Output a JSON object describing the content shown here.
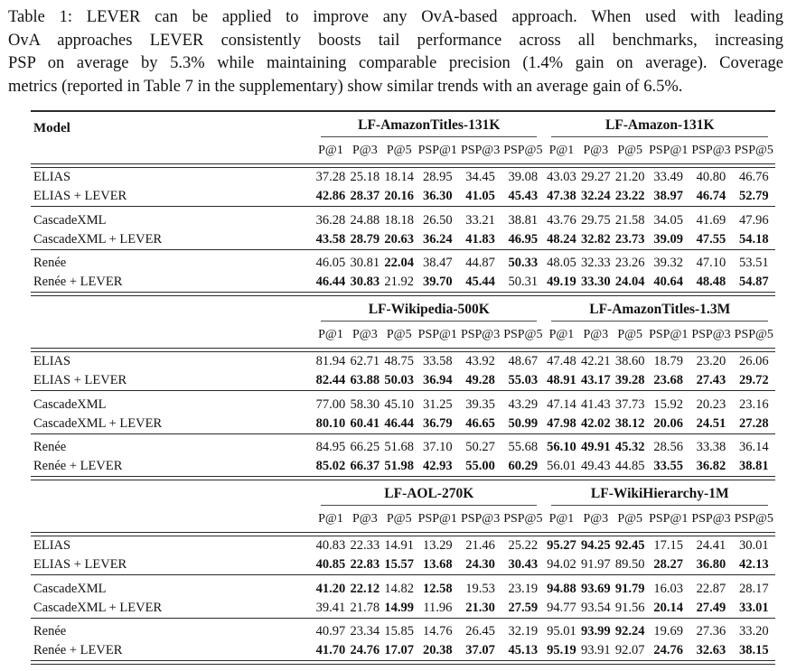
{
  "caption": {
    "lines": [
      "Table 1: LEVER can be applied to improve any OvA-based approach.  When used with leading",
      "OvA approaches LEVER consistently boosts tail performance across all benchmarks, increasing",
      "PSP on average by 5.3% while maintaining comparable precision (1.4% gain on average). Coverage",
      "metrics (reported in Table 7 in the supplementary) show similar trends with an average gain of 6.5%."
    ]
  },
  "table": {
    "model_header": "Model",
    "metrics": [
      "P@1",
      "P@3",
      "P@5",
      "PSP@1",
      "PSP@3",
      "PSP@5"
    ],
    "text_color": "#121212",
    "rule_color": "#2a2a2a",
    "sections": [
      {
        "datasets": [
          "LF-AmazonTitles-131K",
          "LF-Amazon-131K"
        ],
        "groups": [
          {
            "rows": [
              {
                "model": "ELIAS",
                "values": [
                  "37.28",
                  "25.18",
                  "18.14",
                  "28.95",
                  "34.45",
                  "39.08",
                  "43.03",
                  "29.27",
                  "21.20",
                  "33.49",
                  "40.80",
                  "46.76"
                ],
                "bold": [
                  0,
                  0,
                  0,
                  0,
                  0,
                  0,
                  0,
                  0,
                  0,
                  0,
                  0,
                  0
                ]
              },
              {
                "model": "ELIAS + LEVER",
                "values": [
                  "42.86",
                  "28.37",
                  "20.16",
                  "36.30",
                  "41.05",
                  "45.43",
                  "47.38",
                  "32.24",
                  "23.22",
                  "38.97",
                  "46.74",
                  "52.79"
                ],
                "bold": [
                  1,
                  1,
                  1,
                  1,
                  1,
                  1,
                  1,
                  1,
                  1,
                  1,
                  1,
                  1
                ]
              }
            ]
          },
          {
            "rows": [
              {
                "model": "CascadeXML",
                "values": [
                  "36.28",
                  "24.88",
                  "18.18",
                  "26.50",
                  "33.21",
                  "38.81",
                  "43.76",
                  "29.75",
                  "21.58",
                  "34.05",
                  "41.69",
                  "47.96"
                ],
                "bold": [
                  0,
                  0,
                  0,
                  0,
                  0,
                  0,
                  0,
                  0,
                  0,
                  0,
                  0,
                  0
                ]
              },
              {
                "model": "CascadeXML + LEVER",
                "values": [
                  "43.58",
                  "28.79",
                  "20.63",
                  "36.24",
                  "41.83",
                  "46.95",
                  "48.24",
                  "32.82",
                  "23.73",
                  "39.09",
                  "47.55",
                  "54.18"
                ],
                "bold": [
                  1,
                  1,
                  1,
                  1,
                  1,
                  1,
                  1,
                  1,
                  1,
                  1,
                  1,
                  1
                ]
              }
            ]
          },
          {
            "rows": [
              {
                "model": "Renée",
                "values": [
                  "46.05",
                  "30.81",
                  "22.04",
                  "38.47",
                  "44.87",
                  "50.33",
                  "48.05",
                  "32.33",
                  "23.26",
                  "39.32",
                  "47.10",
                  "53.51"
                ],
                "bold": [
                  0,
                  0,
                  1,
                  0,
                  0,
                  1,
                  0,
                  0,
                  0,
                  0,
                  0,
                  0
                ]
              },
              {
                "model": "Renée + LEVER",
                "values": [
                  "46.44",
                  "30.83",
                  "21.92",
                  "39.70",
                  "45.44",
                  "50.31",
                  "49.19",
                  "33.30",
                  "24.04",
                  "40.64",
                  "48.48",
                  "54.87"
                ],
                "bold": [
                  1,
                  1,
                  0,
                  1,
                  1,
                  0,
                  1,
                  1,
                  1,
                  1,
                  1,
                  1
                ]
              }
            ]
          }
        ]
      },
      {
        "datasets": [
          "LF-Wikipedia-500K",
          "LF-AmazonTitles-1.3M"
        ],
        "groups": [
          {
            "rows": [
              {
                "model": "ELIAS",
                "values": [
                  "81.94",
                  "62.71",
                  "48.75",
                  "33.58",
                  "43.92",
                  "48.67",
                  "47.48",
                  "42.21",
                  "38.60",
                  "18.79",
                  "23.20",
                  "26.06"
                ],
                "bold": [
                  0,
                  0,
                  0,
                  0,
                  0,
                  0,
                  0,
                  0,
                  0,
                  0,
                  0,
                  0
                ]
              },
              {
                "model": "ELIAS + LEVER",
                "values": [
                  "82.44",
                  "63.88",
                  "50.03",
                  "36.94",
                  "49.28",
                  "55.03",
                  "48.91",
                  "43.17",
                  "39.28",
                  "23.68",
                  "27.43",
                  "29.72"
                ],
                "bold": [
                  1,
                  1,
                  1,
                  1,
                  1,
                  1,
                  1,
                  1,
                  1,
                  1,
                  1,
                  1
                ]
              }
            ]
          },
          {
            "rows": [
              {
                "model": "CascadeXML",
                "values": [
                  "77.00",
                  "58.30",
                  "45.10",
                  "31.25",
                  "39.35",
                  "43.29",
                  "47.14",
                  "41.43",
                  "37.73",
                  "15.92",
                  "20.23",
                  "23.16"
                ],
                "bold": [
                  0,
                  0,
                  0,
                  0,
                  0,
                  0,
                  0,
                  0,
                  0,
                  0,
                  0,
                  0
                ]
              },
              {
                "model": "CascadeXML + LEVER",
                "values": [
                  "80.10",
                  "60.41",
                  "46.44",
                  "36.79",
                  "46.65",
                  "50.99",
                  "47.98",
                  "42.02",
                  "38.12",
                  "20.06",
                  "24.51",
                  "27.28"
                ],
                "bold": [
                  1,
                  1,
                  1,
                  1,
                  1,
                  1,
                  1,
                  1,
                  1,
                  1,
                  1,
                  1
                ]
              }
            ]
          },
          {
            "rows": [
              {
                "model": "Renée",
                "values": [
                  "84.95",
                  "66.25",
                  "51.68",
                  "37.10",
                  "50.27",
                  "55.68",
                  "56.10",
                  "49.91",
                  "45.32",
                  "28.56",
                  "33.38",
                  "36.14"
                ],
                "bold": [
                  0,
                  0,
                  0,
                  0,
                  0,
                  0,
                  1,
                  1,
                  1,
                  0,
                  0,
                  0
                ]
              },
              {
                "model": "Renée + LEVER",
                "values": [
                  "85.02",
                  "66.37",
                  "51.98",
                  "42.93",
                  "55.00",
                  "60.29",
                  "56.01",
                  "49.43",
                  "44.85",
                  "33.55",
                  "36.82",
                  "38.81"
                ],
                "bold": [
                  1,
                  1,
                  1,
                  1,
                  1,
                  1,
                  0,
                  0,
                  0,
                  1,
                  1,
                  1
                ]
              }
            ]
          }
        ]
      },
      {
        "datasets": [
          "LF-AOL-270K",
          "LF-WikiHierarchy-1M"
        ],
        "groups": [
          {
            "rows": [
              {
                "model": "ELIAS",
                "values": [
                  "40.83",
                  "22.33",
                  "14.91",
                  "13.29",
                  "21.46",
                  "25.22",
                  "95.27",
                  "94.25",
                  "92.45",
                  "17.15",
                  "24.41",
                  "30.01"
                ],
                "bold": [
                  0,
                  0,
                  0,
                  0,
                  0,
                  0,
                  1,
                  1,
                  1,
                  0,
                  0,
                  0
                ]
              },
              {
                "model": "ELIAS + LEVER",
                "values": [
                  "40.85",
                  "22.83",
                  "15.57",
                  "13.68",
                  "24.30",
                  "30.43",
                  "94.02",
                  "91.97",
                  "89.50",
                  "28.27",
                  "36.80",
                  "42.13"
                ],
                "bold": [
                  1,
                  1,
                  1,
                  1,
                  1,
                  1,
                  0,
                  0,
                  0,
                  1,
                  1,
                  1
                ]
              }
            ]
          },
          {
            "rows": [
              {
                "model": "CascadeXML",
                "values": [
                  "41.20",
                  "22.12",
                  "14.82",
                  "12.58",
                  "19.53",
                  "23.19",
                  "94.88",
                  "93.69",
                  "91.79",
                  "16.03",
                  "22.87",
                  "28.17"
                ],
                "bold": [
                  1,
                  1,
                  0,
                  1,
                  0,
                  0,
                  1,
                  1,
                  1,
                  0,
                  0,
                  0
                ]
              },
              {
                "model": "CascadeXML + LEVER",
                "values": [
                  "39.41",
                  "21.78",
                  "14.99",
                  "11.96",
                  "21.30",
                  "27.59",
                  "94.77",
                  "93.54",
                  "91.56",
                  "20.14",
                  "27.49",
                  "33.01"
                ],
                "bold": [
                  0,
                  0,
                  1,
                  0,
                  1,
                  1,
                  0,
                  0,
                  0,
                  1,
                  1,
                  1
                ]
              }
            ]
          },
          {
            "rows": [
              {
                "model": "Renée",
                "values": [
                  "40.97",
                  "23.34",
                  "15.85",
                  "14.76",
                  "26.45",
                  "32.19",
                  "95.01",
                  "93.99",
                  "92.24",
                  "19.69",
                  "27.36",
                  "33.20"
                ],
                "bold": [
                  0,
                  0,
                  0,
                  0,
                  0,
                  0,
                  0,
                  1,
                  1,
                  0,
                  0,
                  0
                ]
              },
              {
                "model": "Renée + LEVER",
                "values": [
                  "41.70",
                  "24.76",
                  "17.07",
                  "20.38",
                  "37.07",
                  "45.13",
                  "95.19",
                  "93.91",
                  "92.07",
                  "24.76",
                  "32.63",
                  "38.15"
                ],
                "bold": [
                  1,
                  1,
                  1,
                  1,
                  1,
                  1,
                  1,
                  0,
                  0,
                  1,
                  1,
                  1
                ]
              }
            ]
          }
        ]
      }
    ]
  }
}
